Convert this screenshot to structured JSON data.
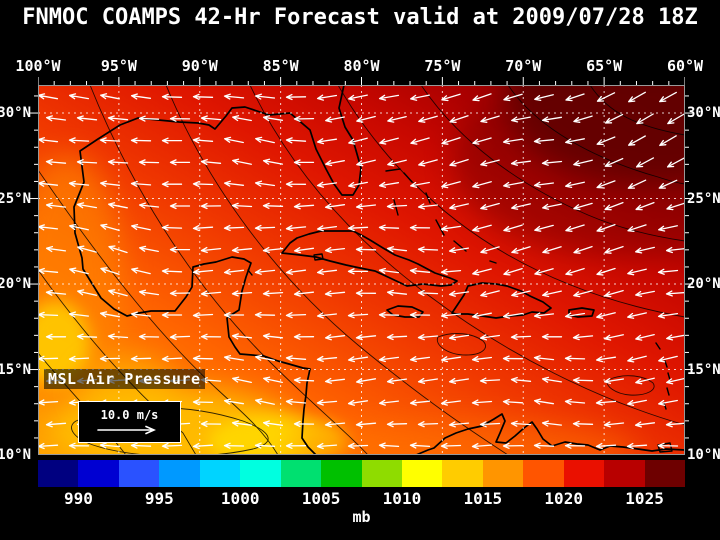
{
  "header": {
    "title": "FNMOC COAMPS 42-Hr Forecast valid at 2009/07/28 18Z"
  },
  "map": {
    "lon_labels": [
      "100°W",
      "95°W",
      "90°W",
      "85°W",
      "80°W",
      "75°W",
      "70°W",
      "65°W",
      "60°W"
    ],
    "lat_labels": [
      "30°N",
      "25°N",
      "20°N",
      "15°N",
      "10°N"
    ],
    "field_label": "MSL Air Pressure",
    "wind_scale_label": "10.0 m/s"
  },
  "colorbar": {
    "unit_label": "mb",
    "tick_labels": [
      "990",
      "995",
      "1000",
      "1005",
      "1010",
      "1015",
      "1020",
      "1025"
    ],
    "tick_values": [
      990,
      995,
      1000,
      1005,
      1010,
      1015,
      1020,
      1025
    ],
    "min": 987.5,
    "max": 1027.5,
    "colors": [
      "#000080",
      "#0000d2",
      "#2a52ff",
      "#0099ff",
      "#00d4ff",
      "#00ffe0",
      "#00e070",
      "#00c000",
      "#8fdc00",
      "#ffff00",
      "#ffcc00",
      "#ff9500",
      "#ff5500",
      "#ea1000",
      "#b80000",
      "#6e0000"
    ]
  },
  "chart_data": {
    "type": "heatmap",
    "title": "FNMOC COAMPS 42-Hr Forecast valid at 2009/07/28 18Z",
    "variable": "MSL Air Pressure",
    "unit": "mb",
    "x_axis": {
      "label": "longitude",
      "ticks": [
        "100°W",
        "95°W",
        "90°W",
        "85°W",
        "80°W",
        "75°W",
        "70°W",
        "65°W",
        "60°W"
      ]
    },
    "y_axis": {
      "label": "latitude",
      "ticks": [
        "30°N",
        "25°N",
        "20°N",
        "15°N",
        "10°N"
      ]
    },
    "colorbar_ticks_mb": [
      990,
      995,
      1000,
      1005,
      1010,
      1015,
      1020,
      1025
    ],
    "wind_reference_vector_mps": 10.0,
    "pattern": "pressure rises from ~1005-1010 mb (yellow/orange) in the southwest and south to ~1025+ mb (dark red) in the northeast; white arrows depict easterly trade-wind flow over the Gulf of Mexico and Caribbean"
  }
}
